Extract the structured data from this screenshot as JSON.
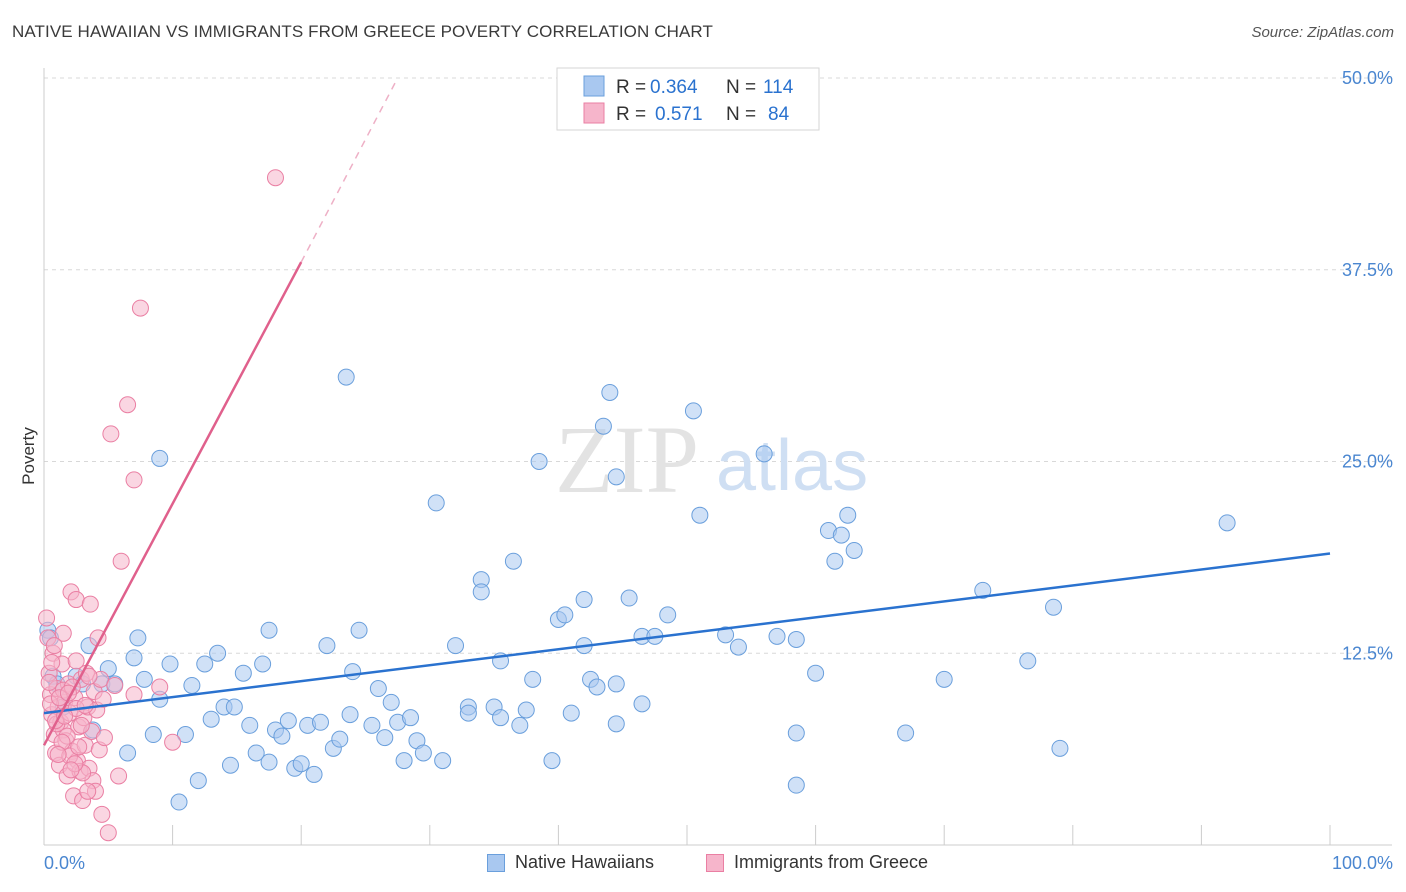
{
  "title": "NATIVE HAWAIIAN VS IMMIGRANTS FROM GREECE POVERTY CORRELATION CHART",
  "source": "Source: ZipAtlas.com",
  "watermark": {
    "zip": "ZIP",
    "atlas": "atlas"
  },
  "colors": {
    "blue_fill": "#a9c8f0",
    "blue_stroke": "#6a9fdc",
    "blue_line": "#2a72cf",
    "pink_fill": "#f6b5cb",
    "pink_stroke": "#ea7fa3",
    "pink_line": "#e0608c",
    "axis_text": "#4a86d0",
    "grid": "#d8d8d8"
  },
  "legend": {
    "r_label": "R =",
    "n_label": "N =",
    "rows": [
      {
        "series": "Native Hawaiians",
        "r": "0.364",
        "n": "114"
      },
      {
        "series": "Immigrants from Greece",
        "r": "0.571",
        "n": "84"
      }
    ]
  },
  "chart_data": {
    "type": "scatter",
    "title": "NATIVE HAWAIIAN VS IMMIGRANTS FROM GREECE POVERTY CORRELATION CHART",
    "xlabel": "",
    "ylabel": "Poverty",
    "xlim": [
      0,
      100
    ],
    "ylim": [
      0,
      50
    ],
    "x_tick_labels": [
      "0.0%",
      "100.0%"
    ],
    "y_ticks": [
      12.5,
      25.0,
      37.5,
      50.0
    ],
    "y_tick_labels": [
      "12.5%",
      "25.0%",
      "37.5%",
      "50.0%"
    ],
    "grid": true,
    "series": [
      {
        "name": "Native Hawaiians",
        "trend": {
          "x0": 0,
          "y0": 8.6,
          "x1": 100,
          "y1": 19.0
        },
        "points": [
          [
            0.3,
            14.0
          ],
          [
            0.5,
            13.5
          ],
          [
            0.7,
            11.0
          ],
          [
            1.0,
            10.5
          ],
          [
            1.5,
            9.0
          ],
          [
            2.5,
            11.0
          ],
          [
            3.0,
            10.5
          ],
          [
            3.5,
            13.0
          ],
          [
            3.8,
            7.5
          ],
          [
            4.5,
            10.5
          ],
          [
            5.0,
            11.5
          ],
          [
            5.5,
            10.5
          ],
          [
            6.5,
            6.0
          ],
          [
            7.0,
            12.2
          ],
          [
            7.3,
            13.5
          ],
          [
            7.8,
            10.8
          ],
          [
            8.5,
            7.2
          ],
          [
            9.0,
            9.5
          ],
          [
            9.0,
            25.2
          ],
          [
            9.8,
            11.8
          ],
          [
            10.5,
            2.8
          ],
          [
            11.0,
            7.2
          ],
          [
            11.5,
            10.4
          ],
          [
            12.0,
            4.2
          ],
          [
            12.5,
            11.8
          ],
          [
            13.0,
            8.2
          ],
          [
            13.5,
            12.5
          ],
          [
            14.0,
            9.0
          ],
          [
            14.5,
            5.2
          ],
          [
            14.8,
            9.0
          ],
          [
            15.5,
            11.2
          ],
          [
            16.0,
            7.8
          ],
          [
            16.5,
            6.0
          ],
          [
            17.0,
            11.8
          ],
          [
            17.5,
            5.4
          ],
          [
            17.5,
            14.0
          ],
          [
            18.0,
            7.5
          ],
          [
            18.5,
            7.1
          ],
          [
            19.0,
            8.1
          ],
          [
            19.5,
            5.0
          ],
          [
            20.0,
            5.3
          ],
          [
            20.5,
            7.8
          ],
          [
            21.0,
            4.6
          ],
          [
            21.5,
            8.0
          ],
          [
            22.0,
            13.0
          ],
          [
            22.5,
            6.3
          ],
          [
            23.0,
            6.9
          ],
          [
            23.5,
            30.5
          ],
          [
            23.8,
            8.5
          ],
          [
            24.0,
            11.3
          ],
          [
            24.5,
            14.0
          ],
          [
            25.5,
            7.8
          ],
          [
            26.0,
            10.2
          ],
          [
            26.5,
            7.0
          ],
          [
            27.0,
            9.3
          ],
          [
            27.5,
            8.0
          ],
          [
            28.0,
            5.5
          ],
          [
            28.5,
            8.3
          ],
          [
            29.0,
            6.8
          ],
          [
            29.5,
            6.0
          ],
          [
            30.5,
            22.3
          ],
          [
            31.0,
            5.5
          ],
          [
            32.0,
            13.0
          ],
          [
            33.0,
            9.0
          ],
          [
            33.0,
            8.6
          ],
          [
            34.0,
            17.3
          ],
          [
            34.0,
            16.5
          ],
          [
            35.0,
            9.0
          ],
          [
            35.5,
            8.3
          ],
          [
            35.5,
            12.0
          ],
          [
            36.5,
            18.5
          ],
          [
            37.0,
            7.8
          ],
          [
            37.5,
            8.8
          ],
          [
            38.0,
            10.8
          ],
          [
            38.5,
            25.0
          ],
          [
            39.5,
            5.5
          ],
          [
            40.0,
            14.7
          ],
          [
            40.5,
            15.0
          ],
          [
            41.0,
            8.6
          ],
          [
            42.0,
            16.0
          ],
          [
            42.0,
            13.0
          ],
          [
            42.5,
            10.8
          ],
          [
            43.0,
            10.3
          ],
          [
            43.5,
            27.3
          ],
          [
            44.0,
            29.5
          ],
          [
            44.5,
            7.9
          ],
          [
            44.5,
            10.5
          ],
          [
            44.5,
            24.0
          ],
          [
            45.5,
            16.1
          ],
          [
            46.5,
            13.6
          ],
          [
            46.5,
            9.2
          ],
          [
            47.5,
            13.6
          ],
          [
            48.5,
            15.0
          ],
          [
            50.5,
            28.3
          ],
          [
            51.0,
            21.5
          ],
          [
            53.0,
            13.7
          ],
          [
            54.0,
            12.9
          ],
          [
            56.0,
            25.5
          ],
          [
            57.0,
            13.6
          ],
          [
            58.5,
            13.4
          ],
          [
            58.5,
            7.3
          ],
          [
            58.5,
            3.9
          ],
          [
            60.0,
            11.2
          ],
          [
            61.0,
            20.5
          ],
          [
            61.5,
            18.5
          ],
          [
            62.0,
            20.2
          ],
          [
            62.5,
            21.5
          ],
          [
            63.0,
            19.2
          ],
          [
            67.0,
            7.3
          ],
          [
            70.0,
            10.8
          ],
          [
            73.0,
            16.6
          ],
          [
            76.5,
            12.0
          ],
          [
            78.5,
            15.5
          ],
          [
            79.0,
            6.3
          ],
          [
            92.0,
            21.0
          ]
        ]
      },
      {
        "name": "Immigrants from Greece",
        "trend": {
          "x0": 0,
          "y0": 6.5,
          "x1": 20,
          "y1": 38.0
        },
        "trend_dashed_to": {
          "x": 27.5,
          "y": 50.0
        },
        "points": [
          [
            0.2,
            14.8
          ],
          [
            0.3,
            13.5
          ],
          [
            0.4,
            11.2
          ],
          [
            0.5,
            9.8
          ],
          [
            0.6,
            8.5
          ],
          [
            0.7,
            12.5
          ],
          [
            0.8,
            7.2
          ],
          [
            0.9,
            6.0
          ],
          [
            1.0,
            10.2
          ],
          [
            1.1,
            9.0
          ],
          [
            1.2,
            5.2
          ],
          [
            1.3,
            8.0
          ],
          [
            1.4,
            11.8
          ],
          [
            1.5,
            7.5
          ],
          [
            1.5,
            13.8
          ],
          [
            1.6,
            9.3
          ],
          [
            1.7,
            6.8
          ],
          [
            1.8,
            4.5
          ],
          [
            1.9,
            10.5
          ],
          [
            2.0,
            8.6
          ],
          [
            2.1,
            16.5
          ],
          [
            2.2,
            6.1
          ],
          [
            2.3,
            3.2
          ],
          [
            2.4,
            9.6
          ],
          [
            2.5,
            12.0
          ],
          [
            2.5,
            16.0
          ],
          [
            2.6,
            5.5
          ],
          [
            2.7,
            7.7
          ],
          [
            2.8,
            4.8
          ],
          [
            2.9,
            10.8
          ],
          [
            3.0,
            2.9
          ],
          [
            3.1,
            8.3
          ],
          [
            3.2,
            6.5
          ],
          [
            3.3,
            11.2
          ],
          [
            3.4,
            9.0
          ],
          [
            3.5,
            5.0
          ],
          [
            3.6,
            15.7
          ],
          [
            3.7,
            7.4
          ],
          [
            3.8,
            4.2
          ],
          [
            3.9,
            10.0
          ],
          [
            4.0,
            3.5
          ],
          [
            4.1,
            8.8
          ],
          [
            4.2,
            13.5
          ],
          [
            4.3,
            6.2
          ],
          [
            4.4,
            10.8
          ],
          [
            4.5,
            2.0
          ],
          [
            4.6,
            9.5
          ],
          [
            4.7,
            7.0
          ],
          [
            5.0,
            0.8
          ],
          [
            5.5,
            10.4
          ],
          [
            5.8,
            4.5
          ],
          [
            5.2,
            26.8
          ],
          [
            6.0,
            18.5
          ],
          [
            6.5,
            28.7
          ],
          [
            7.0,
            9.8
          ],
          [
            7.5,
            35.0
          ],
          [
            7.0,
            23.8
          ],
          [
            9.0,
            10.3
          ],
          [
            10.0,
            6.7
          ],
          [
            18.0,
            43.5
          ],
          [
            0.5,
            9.2
          ],
          [
            1.0,
            7.9
          ],
          [
            1.5,
            10.1
          ],
          [
            2.0,
            5.8
          ],
          [
            2.5,
            8.9
          ],
          [
            3.0,
            4.7
          ],
          [
            3.5,
            11.0
          ],
          [
            0.8,
            13.0
          ],
          [
            1.2,
            9.6
          ],
          [
            1.8,
            7.1
          ],
          [
            2.2,
            10.3
          ],
          [
            2.7,
            6.4
          ],
          [
            3.2,
            9.1
          ],
          [
            0.4,
            10.6
          ],
          [
            0.9,
            8.1
          ],
          [
            1.4,
            6.7
          ],
          [
            1.9,
            9.9
          ],
          [
            2.4,
            5.3
          ],
          [
            2.9,
            7.8
          ],
          [
            3.4,
            3.5
          ],
          [
            0.6,
            11.9
          ],
          [
            1.1,
            5.9
          ],
          [
            1.6,
            8.4
          ],
          [
            2.1,
            4.9
          ]
        ]
      }
    ]
  }
}
